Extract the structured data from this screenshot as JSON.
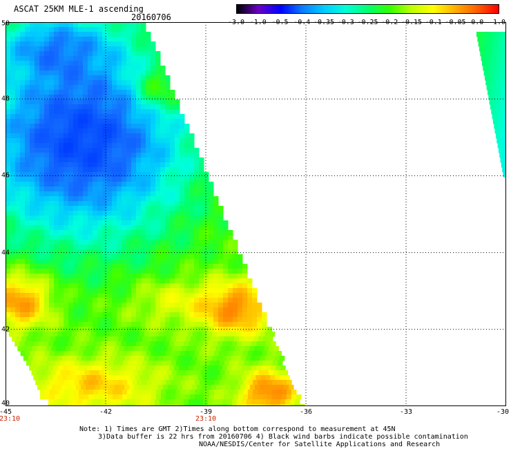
{
  "header": {
    "title": "ASCAT 25KM MLE-1 ascending",
    "date": "20160706"
  },
  "colorbar": {
    "labels": [
      "-3.0",
      "-1.0",
      "-0.5",
      "-0.4",
      "-0.35",
      "-0.3",
      "-0.25",
      "-0.2",
      "-0.15",
      "-0.1",
      "-0.05",
      "0.0",
      "1.0"
    ],
    "colors": [
      "#000000",
      "#6a00c8",
      "#0000ff",
      "#0a7cff",
      "#00ccff",
      "#00ffd8",
      "#00ff70",
      "#33ff00",
      "#bfff00",
      "#ffff00",
      "#ffb000",
      "#ff6000",
      "#ff0000"
    ]
  },
  "axes": {
    "lat_labels": [
      "50",
      "48",
      "46",
      "44",
      "42",
      "40"
    ],
    "lon_labels": [
      "-45",
      "-42",
      "-39",
      "-36",
      "-33",
      "-30"
    ],
    "lat_range": [
      40,
      50
    ],
    "lon_range": [
      -45,
      -30
    ],
    "time_labels": [
      {
        "lon": -45,
        "text": "23:10"
      },
      {
        "lon": -39,
        "text": "23:10"
      }
    ]
  },
  "notes": {
    "line1": "Note: 1) Times are GMT 2)Times along bottom correspond to measurement at 45N",
    "line2": "3)Data buffer is 22 hrs from 20160706 4) Black wind barbs indicate possible contamination",
    "line3": "NOAA/NESDIS/Center for Satellite Applications and Research"
  }
}
